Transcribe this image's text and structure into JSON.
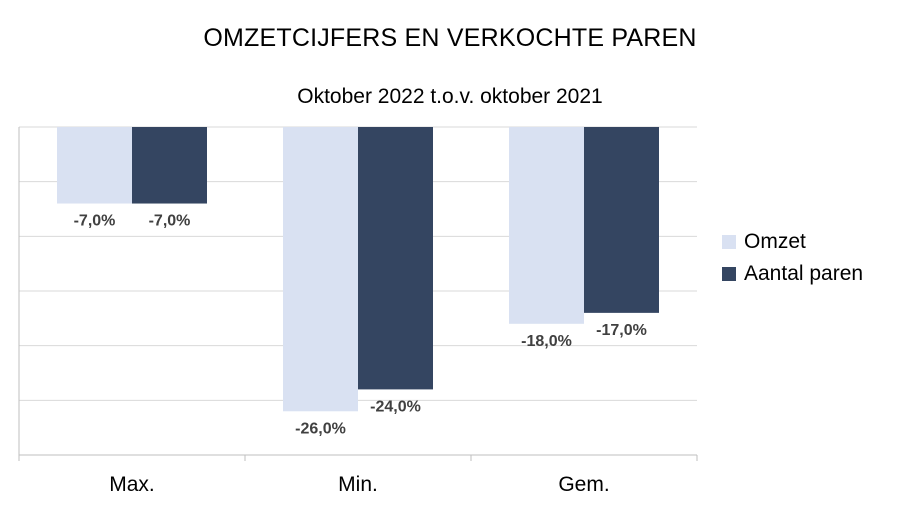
{
  "chart_data": {
    "type": "bar",
    "title": "OMZETCIJFERS EN VERKOCHTE PAREN",
    "subtitle": "Oktober 2022 t.o.v. oktober 2021",
    "categories": [
      "Max.",
      "Min.",
      "Gem."
    ],
    "series": [
      {
        "name": "Omzet",
        "values": [
          -7.0,
          -26.0,
          -18.0
        ],
        "labels": [
          "-7,0%",
          "-26,0%",
          "-18,0%"
        ],
        "color": "#d9e1f2"
      },
      {
        "name": "Aantal paren",
        "values": [
          -7.0,
          -24.0,
          -17.0
        ],
        "labels": [
          "-7,0%",
          "-24,0%",
          "-17,0%"
        ],
        "color": "#344561"
      }
    ],
    "ylim": [
      -30,
      0
    ],
    "grid": true,
    "legend_position": "right",
    "xlabel": "",
    "ylabel": ""
  }
}
